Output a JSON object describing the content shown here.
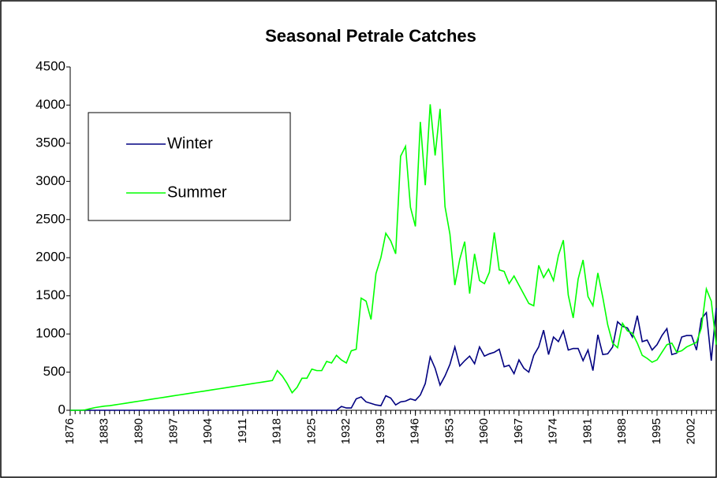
{
  "chart_data": {
    "type": "line",
    "title": "Seasonal Petrale Catches",
    "x": [
      1876,
      1877,
      1878,
      1879,
      1880,
      1881,
      1882,
      1883,
      1884,
      1885,
      1886,
      1887,
      1888,
      1889,
      1890,
      1891,
      1892,
      1893,
      1894,
      1895,
      1896,
      1897,
      1898,
      1899,
      1900,
      1901,
      1902,
      1903,
      1904,
      1905,
      1906,
      1907,
      1908,
      1909,
      1910,
      1911,
      1912,
      1913,
      1914,
      1915,
      1916,
      1917,
      1918,
      1919,
      1920,
      1921,
      1922,
      1923,
      1924,
      1925,
      1926,
      1927,
      1928,
      1929,
      1930,
      1931,
      1932,
      1933,
      1934,
      1935,
      1936,
      1937,
      1938,
      1939,
      1940,
      1941,
      1942,
      1943,
      1944,
      1945,
      1946,
      1947,
      1948,
      1949,
      1950,
      1951,
      1952,
      1953,
      1954,
      1955,
      1956,
      1957,
      1958,
      1959,
      1960,
      1961,
      1962,
      1963,
      1964,
      1965,
      1966,
      1967,
      1968,
      1969,
      1970,
      1971,
      1972,
      1973,
      1974,
      1975,
      1976,
      1977,
      1978,
      1979,
      1980,
      1981,
      1982,
      1983,
      1984,
      1985,
      1986,
      1987,
      1988,
      1989,
      1990,
      1991,
      1992,
      1993,
      1994,
      1995,
      1996,
      1997,
      1998,
      1999,
      2000,
      2001,
      2002,
      2003,
      2004,
      2005,
      2006,
      2007
    ],
    "xlim": [
      1876,
      2007
    ],
    "xticks": [
      1876,
      1883,
      1890,
      1897,
      1904,
      1911,
      1918,
      1925,
      1932,
      1939,
      1946,
      1953,
      1960,
      1967,
      1974,
      1981,
      1988,
      1995,
      2002
    ],
    "ylim": [
      0,
      4500
    ],
    "yticks": [
      0,
      500,
      1000,
      1500,
      2000,
      2500,
      3000,
      3500,
      4000,
      4500
    ],
    "grid": false,
    "legend": "upper-left",
    "series": [
      {
        "name": "Winter",
        "color": "#000080",
        "values": [
          0,
          0,
          0,
          0,
          0,
          0,
          0,
          0,
          0,
          0,
          0,
          0,
          0,
          0,
          0,
          0,
          0,
          0,
          0,
          0,
          0,
          0,
          0,
          0,
          0,
          0,
          0,
          0,
          0,
          0,
          0,
          0,
          0,
          0,
          0,
          0,
          0,
          0,
          0,
          0,
          0,
          0,
          0,
          0,
          0,
          0,
          0,
          0,
          0,
          0,
          0,
          0,
          0,
          0,
          0,
          50,
          30,
          30,
          150,
          175,
          110,
          90,
          70,
          60,
          190,
          160,
          70,
          110,
          120,
          150,
          130,
          200,
          350,
          700,
          550,
          330,
          450,
          600,
          830,
          580,
          650,
          710,
          610,
          830,
          710,
          740,
          760,
          800,
          570,
          590,
          480,
          660,
          550,
          500,
          720,
          830,
          1050,
          730,
          960,
          900,
          1040,
          790,
          810,
          810,
          650,
          790,
          520,
          990,
          730,
          740,
          830,
          1160,
          1100,
          1080,
          960,
          1240,
          900,
          920,
          790,
          860,
          980,
          1070,
          730,
          750,
          960,
          980,
          980,
          790,
          1200,
          1280,
          650,
          1340
        ]
      },
      {
        "name": "Summer",
        "color": "#00ff00",
        "values": [
          0,
          0,
          0,
          5,
          20,
          35,
          45,
          55,
          60,
          70,
          80,
          90,
          100,
          110,
          120,
          130,
          140,
          150,
          160,
          170,
          180,
          190,
          200,
          210,
          220,
          230,
          240,
          250,
          260,
          270,
          280,
          290,
          300,
          310,
          320,
          330,
          340,
          350,
          360,
          370,
          380,
          390,
          520,
          450,
          350,
          230,
          300,
          420,
          420,
          540,
          520,
          520,
          640,
          620,
          720,
          660,
          620,
          780,
          800,
          1470,
          1430,
          1190,
          1790,
          2000,
          2320,
          2220,
          2050,
          3330,
          3460,
          2660,
          2410,
          3780,
          2950,
          4010,
          3340,
          3950,
          2670,
          2310,
          1640,
          1980,
          2210,
          1530,
          2050,
          1700,
          1660,
          1810,
          2330,
          1840,
          1820,
          1660,
          1760,
          1640,
          1520,
          1400,
          1370,
          1900,
          1740,
          1850,
          1700,
          2030,
          2230,
          1510,
          1210,
          1720,
          1970,
          1490,
          1370,
          1800,
          1480,
          1120,
          880,
          820,
          1140,
          1040,
          1010,
          880,
          720,
          680,
          630,
          660,
          760,
          860,
          880,
          760,
          780,
          830,
          860,
          890,
          1080,
          1590,
          1430,
          860
        ]
      }
    ]
  }
}
